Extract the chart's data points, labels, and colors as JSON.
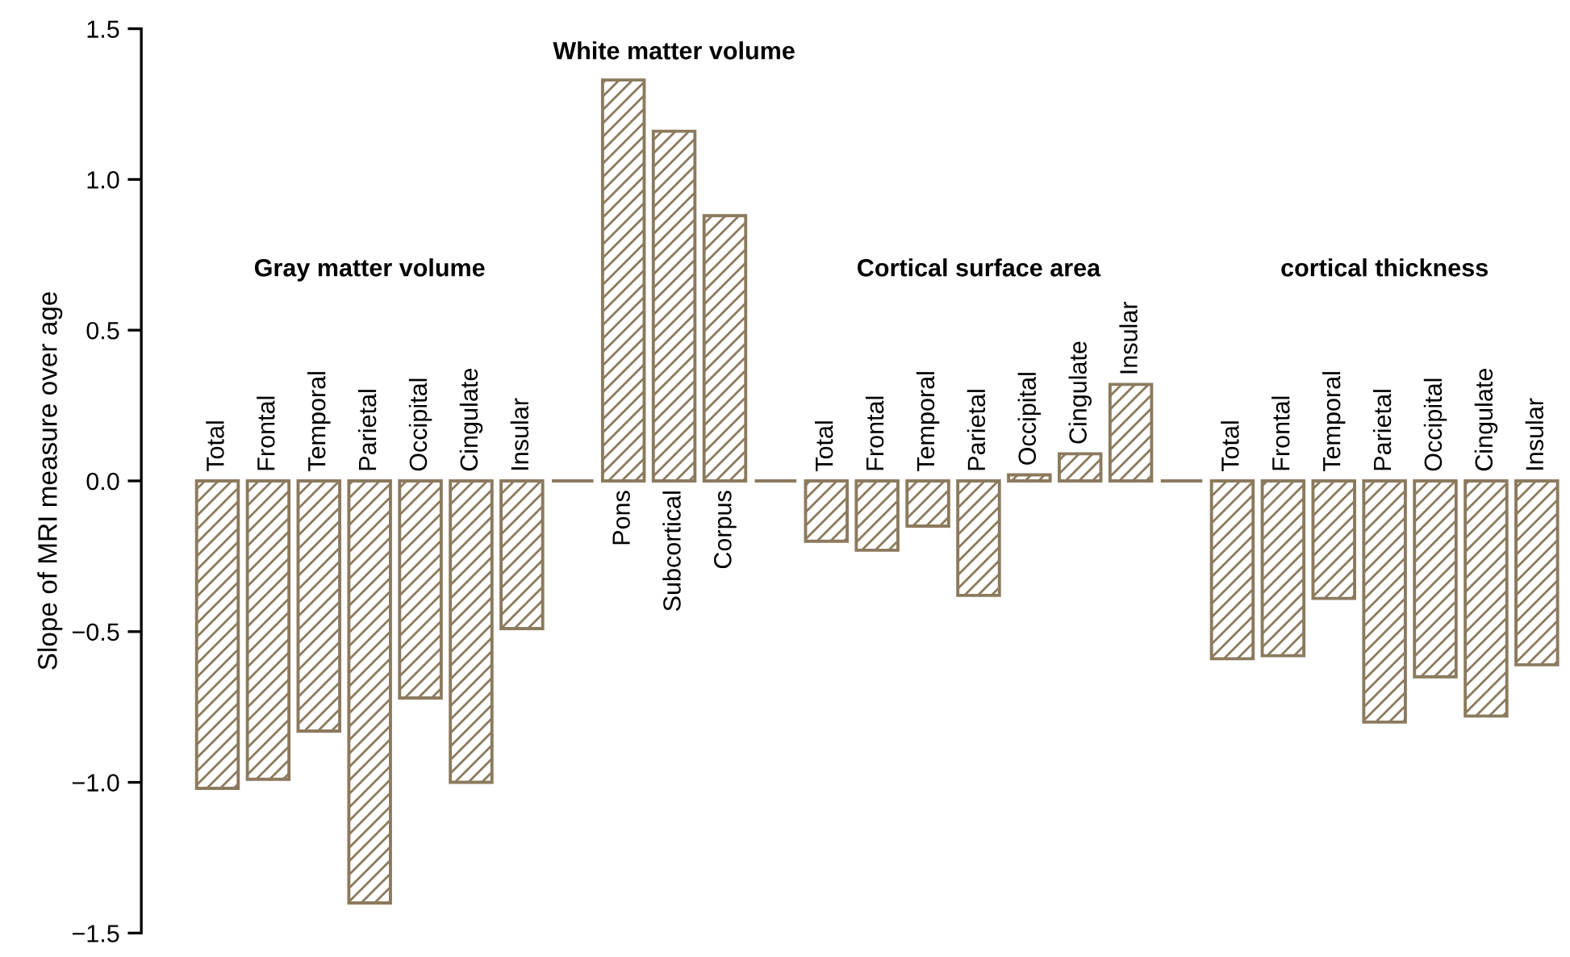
{
  "chart_data": {
    "type": "bar",
    "ylabel": "Slope of MRI measure over age",
    "categories": [
      "Total",
      "Frontal",
      "Temporal",
      "Parietal",
      "Occipital",
      "Cingulate",
      "Insular",
      null,
      "Pons",
      "Subcortical",
      "Corpus",
      null,
      "Total",
      "Frontal",
      "Temporal",
      "Parietal",
      "Occipital",
      "Cingulate",
      "Insular",
      null,
      "Total",
      "Frontal",
      "Temporal",
      "Parietal",
      "Occipital",
      "Cingulate",
      "Insular"
    ],
    "values": [
      -1.02,
      -0.99,
      -0.83,
      -1.4,
      -0.72,
      -1.0,
      -0.49,
      0,
      1.33,
      1.16,
      0.88,
      0,
      -0.2,
      -0.23,
      -0.15,
      -0.38,
      0.02,
      0.09,
      0.32,
      0,
      -0.59,
      -0.58,
      -0.39,
      -0.8,
      -0.65,
      -0.78,
      -0.61
    ],
    "color": "#8c7a5e",
    "annotations": [
      "Gray matter volume",
      "White matter volume",
      "Cortical surface area",
      "cortical thickness"
    ],
    "ylim": [
      -1.5,
      1.5
    ],
    "yticks": [
      {
        "value": -1.5,
        "label": "−1.5"
      },
      {
        "value": -1.0,
        "label": "−1.0"
      },
      {
        "value": -0.5,
        "label": "−0.5"
      },
      {
        "value": 0.0,
        "label": "0.0"
      },
      {
        "value": 0.5,
        "label": "0.5"
      },
      {
        "value": 1.0,
        "label": "1.0"
      },
      {
        "value": 1.5,
        "label": "1.5"
      }
    ],
    "grid": false
  }
}
